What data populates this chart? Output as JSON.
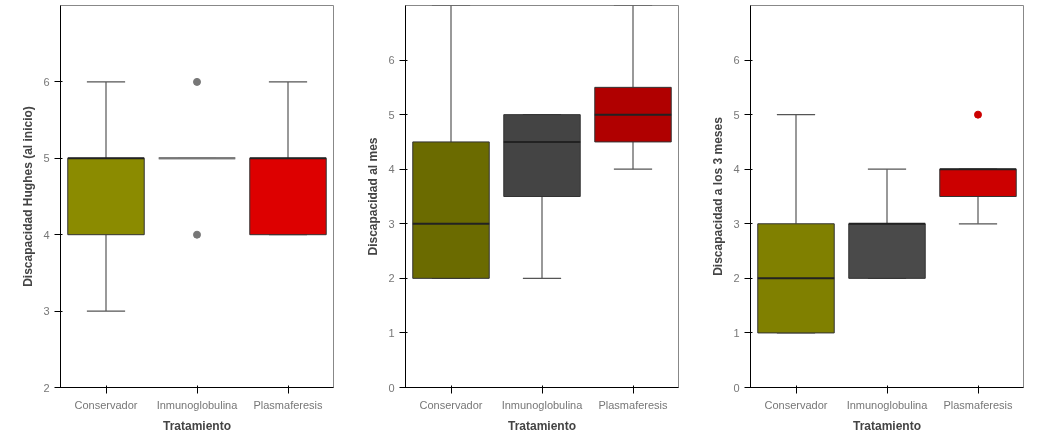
{
  "chart_data": [
    {
      "type": "box",
      "xlabel": "Tratamiento",
      "ylabel": "Discapacidad Hughes (al inicio)",
      "categories": [
        "Conservador",
        "Inmunoglobulina",
        "Plasmaferesis"
      ],
      "colors": [
        "#8b8b00",
        "#777777",
        "#dd0000"
      ],
      "boxes": [
        {
          "low": 3,
          "q1": 4,
          "median": 5,
          "q3": 5,
          "high": 6
        },
        {
          "low": 5,
          "q1": 5,
          "median": 5,
          "q3": 5,
          "high": 5,
          "outliers": [
            6,
            4
          ]
        },
        {
          "low": 4,
          "q1": 4,
          "median": 5,
          "q3": 5,
          "high": 6
        }
      ],
      "ylim": [
        2,
        7
      ],
      "yticks": [
        2,
        3,
        4,
        5,
        6
      ]
    },
    {
      "type": "box",
      "xlabel": "Tratamiento",
      "ylabel": "Discapacidad al mes",
      "categories": [
        "Conservador",
        "Inmunoglobulina",
        "Plasmaferesis"
      ],
      "colors": [
        "#6b6b00",
        "#444444",
        "#b00000"
      ],
      "boxes": [
        {
          "low": 2,
          "q1": 2,
          "median": 3,
          "q3": 4.5,
          "high": 7
        },
        {
          "low": 2,
          "q1": 3.5,
          "median": 4.5,
          "q3": 5,
          "high": 5
        },
        {
          "low": 4,
          "q1": 4.5,
          "median": 5,
          "q3": 5.5,
          "high": 7
        }
      ],
      "ylim": [
        0,
        7
      ],
      "yticks": [
        0,
        1,
        2,
        3,
        4,
        5,
        6
      ]
    },
    {
      "type": "box",
      "xlabel": "Tratamiento",
      "ylabel": "Discapacidad a los 3 meses",
      "categories": [
        "Conservador",
        "Inmunoglobulina",
        "Plasmaferesis"
      ],
      "colors": [
        "#808000",
        "#4a4a4a",
        "#cc0000"
      ],
      "boxes": [
        {
          "low": 1,
          "q1": 1,
          "median": 2,
          "q3": 3,
          "high": 5
        },
        {
          "low": 2,
          "q1": 2,
          "median": 3,
          "q3": 3,
          "high": 4
        },
        {
          "low": 3,
          "q1": 3.5,
          "median": 4,
          "q3": 4,
          "high": 4,
          "outliers": [
            5
          ]
        }
      ],
      "ylim": [
        0,
        7
      ],
      "yticks": [
        0,
        1,
        2,
        3,
        4,
        5,
        6
      ]
    }
  ]
}
